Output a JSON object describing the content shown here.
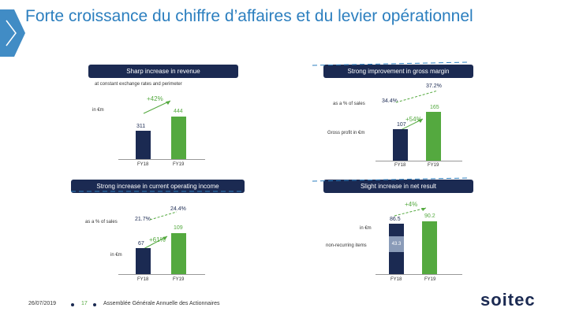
{
  "title": "Forte croissance du chiffre d’affaires et du levier opérationnel",
  "panels": {
    "revenue": {
      "banner": "Sharp increase in revenue",
      "note": "at constant exchange rates and perimeter",
      "unit": "in €m",
      "growth": "+42%",
      "fy18_value": "311",
      "fy19_value": "444",
      "fy18_label": "FY18",
      "fy19_label": "FY19"
    },
    "gross_margin": {
      "banner": "Strong improvement in gross margin",
      "pct_label": "as a % of sales",
      "pct_fy18": "34.4%",
      "pct_fy19": "37.2%",
      "unit": "Gross profit in €m",
      "growth": "+54%",
      "fy18_value": "107",
      "fy19_value": "165",
      "fy18_label": "FY18",
      "fy19_label": "FY19"
    },
    "operating_income": {
      "banner": "Strong increase in current operating income",
      "pct_label": "as a % of sales",
      "pct_fy18": "21.7%",
      "pct_fy19": "24.4%",
      "unit": "in €m",
      "growth": "+61%",
      "fy18_value": "67",
      "fy19_value": "109",
      "fy18_label": "FY18",
      "fy19_label": "FY19"
    },
    "net_result": {
      "banner": "Slight increase in net result",
      "unit": "in €m",
      "growth": "+4%",
      "nonrec_label": "non-recurring items",
      "nonrec_value": "43.3",
      "fy18_value": "86.5",
      "fy19_value": "90.2",
      "fy18_label": "FY18",
      "fy19_label": "FY19"
    }
  },
  "footer": {
    "date": "26/07/2019",
    "page": "17",
    "event": "Assemblée Générale Annuelle des Actionnaires",
    "logo": "soitec"
  },
  "colors": {
    "navy": "#1b2a52",
    "green": "#54a93f",
    "blue": "#2c7fbf"
  }
}
